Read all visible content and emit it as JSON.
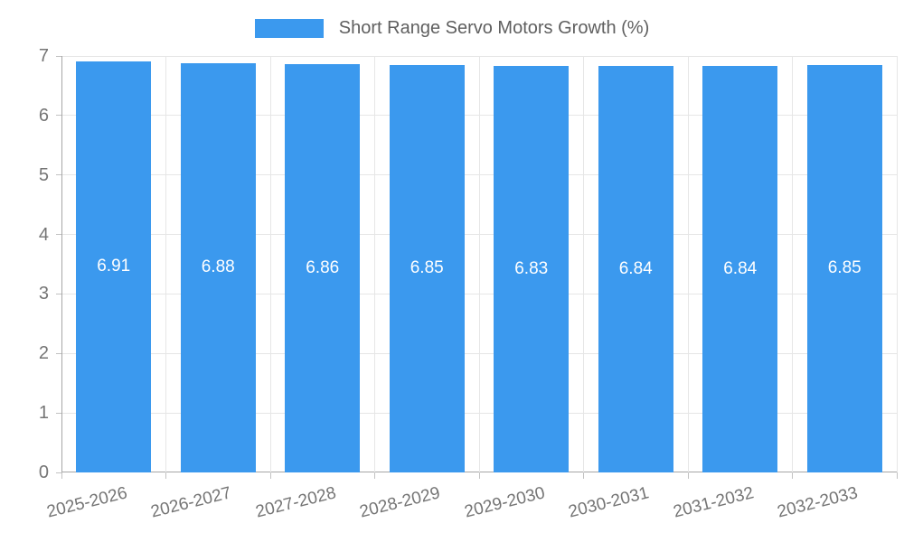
{
  "chart_data": {
    "type": "bar",
    "title": "",
    "legend": "Short Range Servo Motors Growth (%)",
    "legend_position": "top",
    "categories": [
      "2025-2026",
      "2026-2027",
      "2027-2028",
      "2028-2029",
      "2029-2030",
      "2030-2031",
      "2031-2032",
      "2032-2033"
    ],
    "values": [
      6.91,
      6.88,
      6.86,
      6.85,
      6.83,
      6.84,
      6.84,
      6.85
    ],
    "value_labels": [
      "6.91",
      "6.88",
      "6.86",
      "6.85",
      "6.83",
      "6.84",
      "6.84",
      "6.85"
    ],
    "xlabel": "",
    "ylabel": "",
    "ylim": [
      0,
      7
    ],
    "yticks": [
      0,
      1,
      2,
      3,
      4,
      5,
      6,
      7
    ],
    "grid": true
  },
  "colors": {
    "background": "#ffffff",
    "bar": "#3b99ee",
    "grid_line": "#e6e6e6",
    "axis_line": "#a6a6a6",
    "tick_mark": "#c2c2c2",
    "tick_text": "#757575",
    "legend_text": "#5f5f5f",
    "value_text": "#ffffff"
  }
}
